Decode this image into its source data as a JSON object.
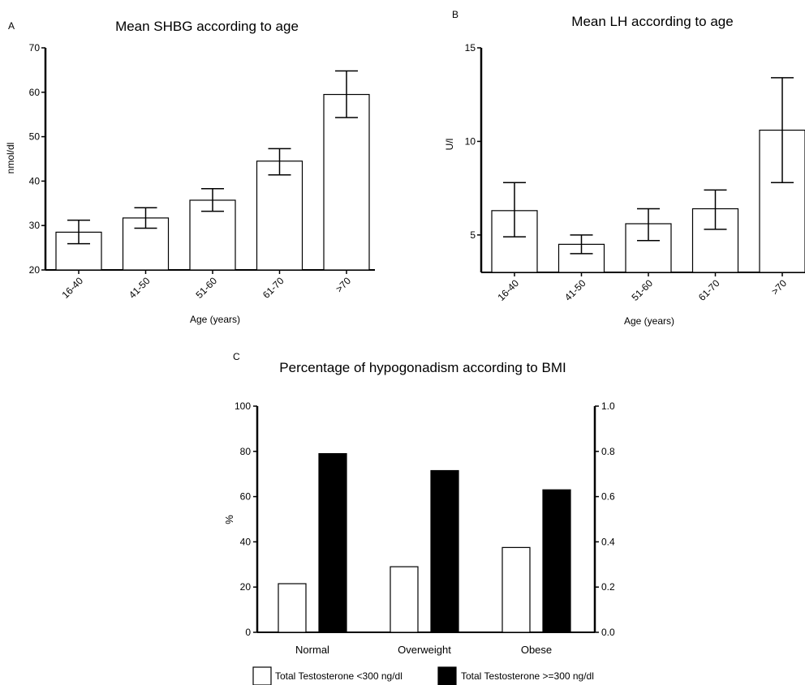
{
  "panels": {
    "a": {
      "letter": "A",
      "title": "Mean SHBG according to age"
    },
    "b": {
      "letter": "B",
      "title": "Mean LH according to age"
    },
    "c": {
      "letter": "C",
      "title": "Percentage of hypogonadism according to BMI"
    }
  },
  "chart_data": [
    {
      "type": "bar",
      "title": "Mean SHBG according to age",
      "xlabel": "Age (years)",
      "ylabel": "nmol/dl",
      "categories": [
        "16-40",
        "41-50",
        "51-60",
        "61-70",
        ">70"
      ],
      "values": [
        28.5,
        31.7,
        35.7,
        44.5,
        59.5
      ],
      "error_low": [
        25.9,
        29.4,
        33.2,
        41.4,
        54.3
      ],
      "error_high": [
        31.2,
        34.0,
        38.3,
        47.3,
        64.8
      ],
      "ylim": [
        20,
        70
      ],
      "yticks": [
        20,
        30,
        40,
        50,
        60,
        70
      ],
      "grid": false,
      "bar_color": "#ffffff"
    },
    {
      "type": "bar",
      "title": "Mean LH according to age",
      "xlabel": "Age (years)",
      "ylabel": "U/l",
      "categories": [
        "16-40",
        "41-50",
        "51-60",
        "61-70",
        ">70"
      ],
      "values": [
        6.3,
        4.5,
        5.6,
        6.4,
        10.6
      ],
      "error_low": [
        4.9,
        4.0,
        4.7,
        5.3,
        7.8
      ],
      "error_high": [
        7.8,
        5.0,
        6.4,
        7.4,
        13.4
      ],
      "ylim": [
        3.0,
        15
      ],
      "yticks": [
        5,
        10,
        15
      ],
      "grid": false,
      "bar_color": "#ffffff"
    },
    {
      "type": "bar",
      "title": "Percentage of hypogonadism according to BMI",
      "xlabel": "",
      "ylabel": "%",
      "categories": [
        "Normal",
        "Overweight",
        "Obese"
      ],
      "series": [
        {
          "name": "Total Testosterone <300 ng/dl",
          "values": [
            21.5,
            29,
            37.5
          ],
          "color": "#ffffff"
        },
        {
          "name": "Total Testosterone >=300 ng/dl",
          "values": [
            79,
            71.5,
            63
          ],
          "color": "#000000"
        }
      ],
      "ylim": [
        0,
        100
      ],
      "yticks": [
        0,
        20,
        40,
        60,
        80,
        100
      ],
      "y2lim": [
        0,
        1.0
      ],
      "y2ticks": [
        "0.0",
        "0.2",
        "0.4",
        "0.6",
        "0.8",
        "1.0"
      ],
      "legend": "bottom",
      "grid": false
    }
  ]
}
